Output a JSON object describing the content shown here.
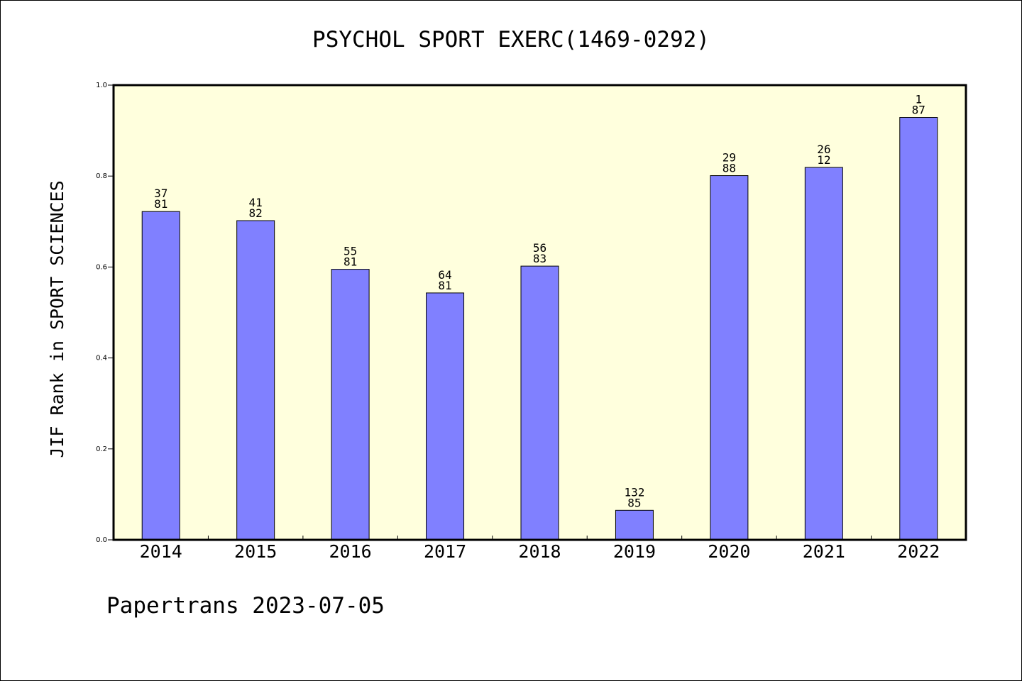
{
  "chart_data": {
    "type": "bar",
    "title": "PSYCHOL SPORT EXERC(1469-0292)",
    "ylabel": "JIF Rank in SPORT SCIENCES",
    "xlabel": "",
    "ylim": [
      0,
      1.0
    ],
    "yticks": [
      "0.0",
      "0.2",
      "0.4",
      "0.6",
      "0.8",
      "1.0"
    ],
    "categories": [
      "2014",
      "2015",
      "2016",
      "2017",
      "2018",
      "2019",
      "2020",
      "2021",
      "2022"
    ],
    "values": [
      0.722,
      0.702,
      0.595,
      0.543,
      0.602,
      0.065,
      0.801,
      0.819,
      0.929
    ],
    "labels_top": [
      "37",
      "41",
      "55",
      "64",
      "56",
      "132",
      "29",
      "26",
      "1"
    ],
    "labels_bottom": [
      "81",
      "82",
      "81",
      "81",
      "83",
      "85",
      "88",
      "12",
      "87"
    ],
    "grid": false,
    "colors": {
      "plot_background": "#ffffdd",
      "bar_fill": "#8080ff",
      "bar_stroke": "#000000"
    }
  },
  "footer": {
    "text": "Papertrans 2023-07-05"
  }
}
